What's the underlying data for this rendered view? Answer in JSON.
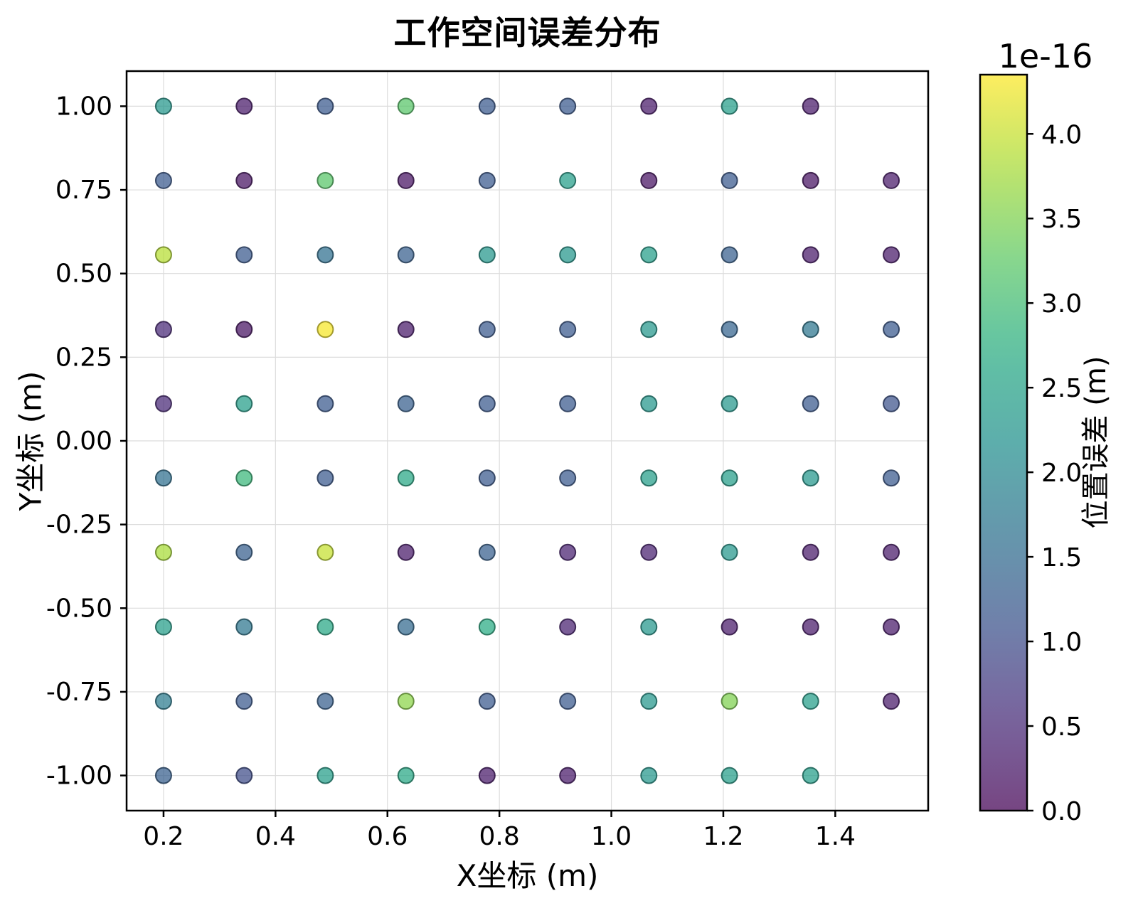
{
  "title": "工作空间误差分布",
  "xlabel": "X坐标 (m)",
  "ylabel": "Y坐标 (m)",
  "colorbar": {
    "label": "位置误差 (m)",
    "offset_text": "1e-16",
    "ticks": [
      0.0,
      0.5,
      1.0,
      1.5,
      2.0,
      2.5,
      3.0,
      3.5,
      4.0
    ],
    "tick_labels": [
      "0.0",
      "0.5",
      "1.0",
      "1.5",
      "2.0",
      "2.5",
      "3.0",
      "3.5",
      "4.0"
    ],
    "vmin": 0,
    "vmax": 4.35
  },
  "axes": {
    "xlim": [
      0.134,
      1.566
    ],
    "ylim": [
      -1.105,
      1.105
    ],
    "xticks": [
      0.2,
      0.4,
      0.6,
      0.8,
      1.0,
      1.2,
      1.4
    ],
    "xtick_labels": [
      "0.2",
      "0.4",
      "0.6",
      "0.8",
      "1.0",
      "1.2",
      "1.4"
    ],
    "yticks": [
      1.0,
      0.75,
      0.5,
      0.25,
      0.0,
      -0.25,
      -0.5,
      -0.75,
      -1.0
    ],
    "ytick_labels": [
      "1.00",
      "0.75",
      "0.50",
      "0.25",
      "0.00",
      "-0.25",
      "-0.50",
      "-0.75",
      "-1.00"
    ],
    "grid": true,
    "grid_color": "#dcdcdc",
    "border_color": "#000000"
  },
  "style": {
    "marker_radius": 11,
    "marker_alpha": 0.72,
    "colorbar_alpha": 0.73,
    "colormap": "viridis"
  },
  "chart_data": {
    "type": "scatter",
    "title": "工作空间误差分布",
    "xlabel": "X坐标 (m)",
    "ylabel": "Y坐标 (m)",
    "color_label": "位置误差 (m)",
    "value_unit": "m",
    "value_scale": 1e-16,
    "color_vmin": 0,
    "color_vmax": 4.35,
    "x_columns": [
      0.2,
      0.344,
      0.489,
      0.633,
      0.778,
      0.922,
      1.067,
      1.211,
      1.356,
      1.5
    ],
    "rows": [
      {
        "y": 1.0,
        "values": [
          2.3,
          0.3,
          1.2,
          3.2,
          1.2,
          1.2,
          0.3,
          2.4,
          0.3,
          null
        ]
      },
      {
        "y": 0.778,
        "values": [
          1.2,
          0.2,
          3.2,
          0.2,
          1.2,
          2.4,
          0.2,
          1.2,
          0.2,
          0.3
        ]
      },
      {
        "y": 0.556,
        "values": [
          3.9,
          1.2,
          1.6,
          1.3,
          2.3,
          2.3,
          2.4,
          1.3,
          0.3,
          0.3
        ]
      },
      {
        "y": 0.333,
        "values": [
          0.5,
          0.2,
          4.3,
          0.3,
          1.2,
          1.2,
          2.3,
          1.4,
          1.7,
          1.2
        ]
      },
      {
        "y": 0.111,
        "values": [
          0.5,
          2.4,
          1.2,
          1.3,
          1.2,
          1.2,
          2.3,
          2.3,
          1.2,
          1.1
        ]
      },
      {
        "y": -0.111,
        "values": [
          1.6,
          2.9,
          1.2,
          2.6,
          1.2,
          1.2,
          2.4,
          2.4,
          2.3,
          1.2
        ]
      },
      {
        "y": -0.333,
        "values": [
          3.8,
          1.3,
          4.0,
          0.3,
          1.3,
          0.4,
          0.4,
          2.3,
          0.3,
          0.3
        ]
      },
      {
        "y": -0.556,
        "values": [
          2.4,
          1.7,
          2.6,
          1.5,
          2.7,
          0.4,
          2.3,
          0.3,
          0.3,
          0.3
        ]
      },
      {
        "y": -0.778,
        "values": [
          1.8,
          1.2,
          1.3,
          3.6,
          1.2,
          1.2,
          2.3,
          3.5,
          2.4,
          0.3
        ]
      },
      {
        "y": -1.0,
        "values": [
          1.3,
          1.0,
          2.4,
          2.6,
          0.3,
          0.3,
          2.3,
          2.4,
          2.4,
          null
        ]
      }
    ]
  }
}
